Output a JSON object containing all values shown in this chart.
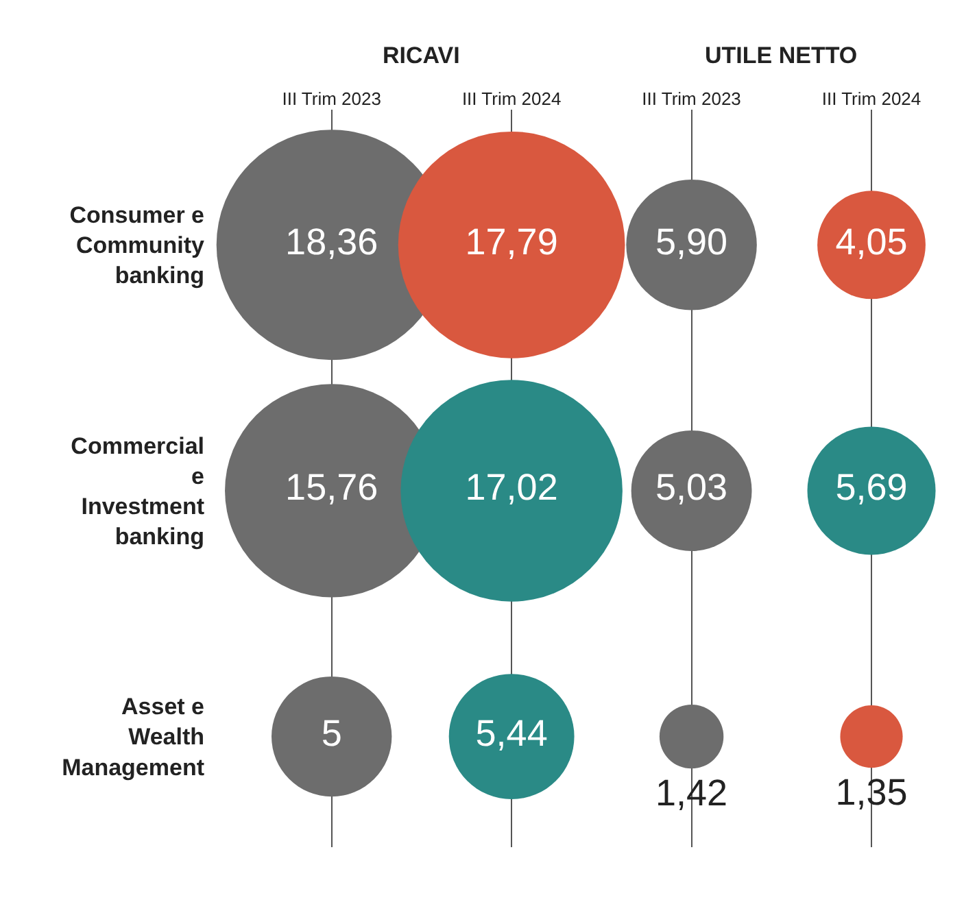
{
  "chart_data": {
    "type": "other",
    "categories": [
      "III Trim 2023",
      "III Trim 2024",
      "III Trim 2023",
      "III Trim 2024"
    ],
    "annotations": [
      "RICAVI",
      "UTILE NETTO"
    ],
    "legend": false,
    "series": [
      {
        "name": "Consumer e Community banking",
        "values": [
          18.36,
          17.79,
          5.9,
          4.05
        ],
        "value_labels": [
          "18,36",
          "17,79",
          "5,90",
          "4,05"
        ],
        "colors": [
          "#6d6d6d",
          "#d9583f",
          "#6d6d6d",
          "#d9583f"
        ]
      },
      {
        "name": "Commercial e Investment banking",
        "values": [
          15.76,
          17.02,
          5.03,
          5.69
        ],
        "value_labels": [
          "15,76",
          "17,02",
          "5,03",
          "5,69"
        ],
        "colors": [
          "#6d6d6d",
          "#2a8a86",
          "#6d6d6d",
          "#2a8a86"
        ]
      },
      {
        "name": "Asset e Wealth Management",
        "values": [
          5,
          5.44,
          1.42,
          1.35
        ],
        "value_labels": [
          "5",
          "5,44",
          "1,42",
          "1,35"
        ],
        "colors": [
          "#6d6d6d",
          "#2a8a86",
          "#6d6d6d",
          "#d9583f"
        ]
      }
    ]
  }
}
